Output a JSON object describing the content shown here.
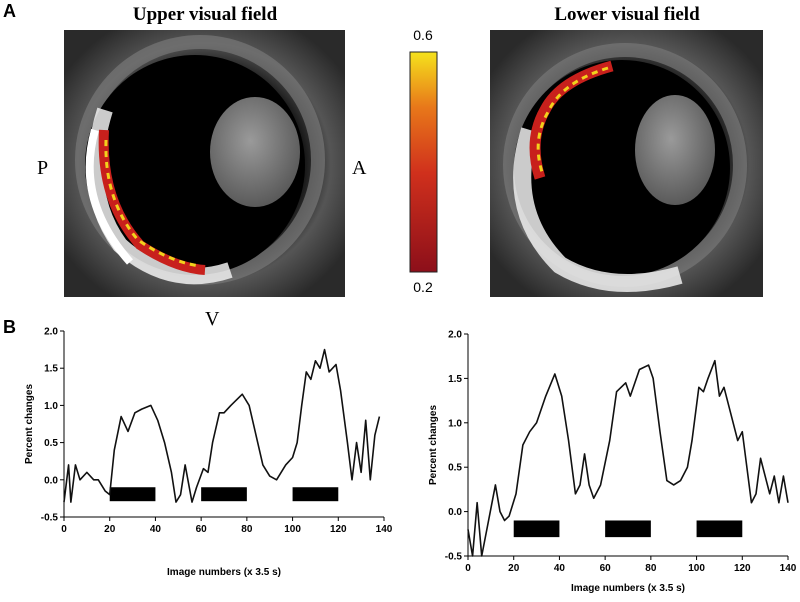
{
  "panel_a": {
    "label": "A",
    "left_title": "Upper visual field",
    "right_title": "Lower visual field",
    "orientation": {
      "posterior": "P",
      "anterior": "A",
      "ventral": "V"
    },
    "colorbar": {
      "max": 0.6,
      "min": 0.2
    }
  },
  "panel_b": {
    "label": "B"
  },
  "chart_data": [
    {
      "type": "line",
      "color": "#111111",
      "xlabel": "Image numbers (x 3.5 s)",
      "ylabel": "Percent changes",
      "xlim": [
        0,
        140
      ],
      "ylim": [
        -0.5,
        2.0
      ],
      "xticks": [
        0,
        20,
        40,
        60,
        80,
        100,
        120,
        140
      ],
      "yticks": [
        -0.5,
        {
          "value": 0,
          "label": "0.0"
        },
        0.5,
        {
          "value": 1,
          "label": "1.0"
        },
        1.5,
        {
          "value": 2,
          "label": "2.0"
        }
      ],
      "stimulus_blocks": [
        [
          20,
          40
        ],
        [
          60,
          80
        ],
        [
          100,
          120
        ]
      ],
      "x": [
        0,
        2,
        3,
        5,
        7,
        10,
        13,
        15,
        18,
        20,
        22,
        25,
        28,
        31,
        34,
        38,
        41,
        44,
        47,
        49,
        51,
        53,
        56,
        58,
        61,
        63,
        65,
        68,
        70,
        73,
        78,
        81,
        84,
        87,
        90,
        93,
        97,
        100,
        102,
        104,
        106,
        108,
        110,
        112,
        114,
        116,
        119,
        121,
        124,
        126,
        128,
        130,
        132,
        134,
        136,
        138
      ],
      "values": [
        -0.3,
        0.2,
        -0.3,
        0.2,
        0.0,
        0.1,
        0.0,
        0.0,
        -0.15,
        -0.2,
        0.4,
        0.85,
        0.65,
        0.9,
        0.95,
        1.0,
        0.8,
        0.5,
        0.1,
        -0.3,
        -0.2,
        0.2,
        -0.3,
        -0.1,
        0.15,
        0.1,
        0.5,
        0.9,
        0.9,
        1.0,
        1.15,
        1.0,
        0.6,
        0.2,
        0.05,
        0.0,
        0.2,
        0.3,
        0.5,
        1.0,
        1.45,
        1.35,
        1.6,
        1.5,
        1.75,
        1.45,
        1.55,
        1.2,
        0.5,
        0.0,
        0.5,
        0.1,
        0.8,
        0.0,
        0.6,
        0.85
      ]
    },
    {
      "type": "line",
      "color": "#111111",
      "xlabel": "Image numbers (x 3.5 s)",
      "ylabel": "Percent changes",
      "xlim": [
        0,
        140
      ],
      "ylim": [
        -0.5,
        2.0
      ],
      "xticks": [
        0,
        20,
        40,
        60,
        80,
        100,
        120,
        140
      ],
      "yticks": [
        -0.5,
        {
          "value": 0,
          "label": "0.0"
        },
        0.5,
        {
          "value": 1,
          "label": "1.0"
        },
        1.5,
        {
          "value": 2,
          "label": "2.0"
        }
      ],
      "stimulus_blocks": [
        [
          20,
          40
        ],
        [
          60,
          80
        ],
        [
          100,
          120
        ]
      ],
      "x": [
        0,
        2,
        4,
        6,
        9,
        12,
        14,
        16,
        18,
        21,
        24,
        27,
        30,
        34,
        38,
        41,
        44,
        47,
        49,
        51,
        53,
        55,
        58,
        62,
        65,
        69,
        71,
        75,
        79,
        81,
        84,
        87,
        90,
        93,
        96,
        98,
        101,
        103,
        105,
        108,
        110,
        112,
        115,
        118,
        120,
        122,
        124,
        126,
        128,
        130,
        132,
        134,
        136,
        138,
        140
      ],
      "values": [
        -0.2,
        -0.5,
        0.1,
        -0.5,
        -0.1,
        0.3,
        0.0,
        -0.1,
        -0.05,
        0.2,
        0.75,
        0.9,
        1.0,
        1.3,
        1.55,
        1.3,
        0.8,
        0.2,
        0.3,
        0.65,
        0.3,
        0.15,
        0.3,
        0.8,
        1.35,
        1.45,
        1.3,
        1.6,
        1.65,
        1.5,
        0.9,
        0.35,
        0.3,
        0.35,
        0.5,
        0.8,
        1.4,
        1.35,
        1.5,
        1.7,
        1.3,
        1.4,
        1.1,
        0.8,
        0.9,
        0.5,
        0.1,
        0.2,
        0.6,
        0.4,
        0.2,
        0.4,
        0.1,
        0.4,
        0.1
      ]
    }
  ]
}
